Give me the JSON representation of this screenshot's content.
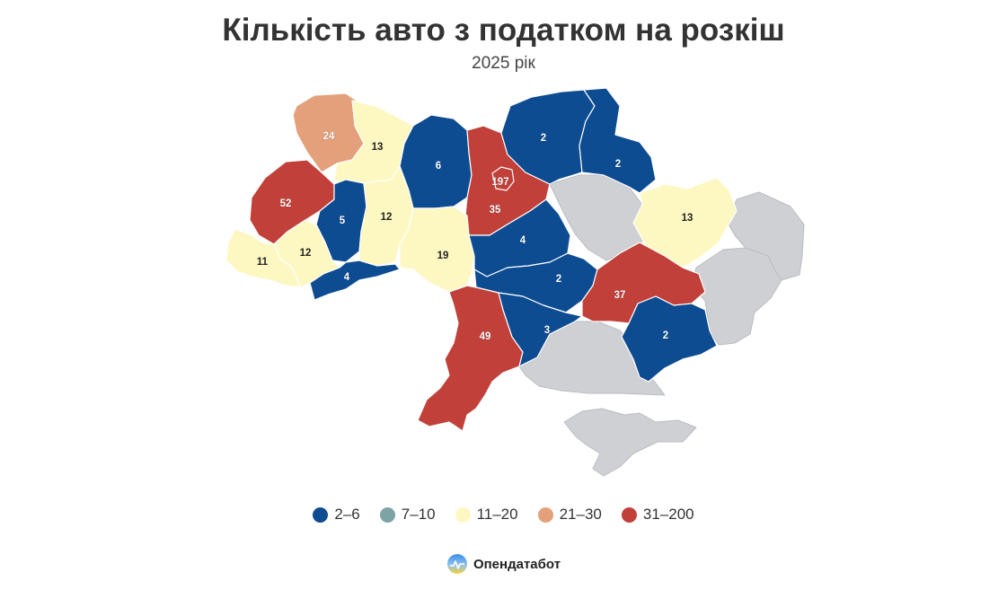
{
  "title": "Кількість авто з податком на розкіш",
  "subtitle": "2025 рік",
  "colors": {
    "bin_2_6": "#0e4c92",
    "bin_7_10": "#7da3a4",
    "bin_11_20": "#fdf7c2",
    "bin_21_30": "#e3a07a",
    "bin_31_200": "#c1403a",
    "no_data": "#cfd0d3"
  },
  "legend": [
    {
      "label": "2–6",
      "color": "#0e4c92"
    },
    {
      "label": "7–10",
      "color": "#7da3a4"
    },
    {
      "label": "11–20",
      "color": "#fdf7c2"
    },
    {
      "label": "21–30",
      "color": "#e3a07a"
    },
    {
      "label": "31–200",
      "color": "#c1403a"
    }
  ],
  "regions": {
    "volyn": {
      "value": "24",
      "bin": "bin_21_30"
    },
    "rivne": {
      "value": "13",
      "bin": "bin_11_20"
    },
    "zhytomyr": {
      "value": "6",
      "bin": "bin_2_6"
    },
    "kyiv_city": {
      "value": "197",
      "bin": "bin_31_200"
    },
    "kyiv_oblast": {
      "value": "35",
      "bin": "bin_31_200"
    },
    "chernihiv": {
      "value": "2",
      "bin": "bin_2_6"
    },
    "sumy": {
      "value": "2",
      "bin": "bin_2_6"
    },
    "kharkiv": {
      "value": "13",
      "bin": "bin_11_20"
    },
    "lviv": {
      "value": "52",
      "bin": "bin_31_200"
    },
    "ternopil": {
      "value": "5",
      "bin": "bin_2_6"
    },
    "khmelnytskyi": {
      "value": "12",
      "bin": "bin_11_20"
    },
    "vinnytsia": {
      "value": "19",
      "bin": "bin_11_20"
    },
    "cherkasy": {
      "value": "4",
      "bin": "bin_2_6"
    },
    "kirovohrad": {
      "value": "2",
      "bin": "bin_2_6"
    },
    "dnipropetrovsk": {
      "value": "37",
      "bin": "bin_31_200"
    },
    "zakarpattia": {
      "value": "11",
      "bin": "bin_11_20"
    },
    "ivano_frankivsk": {
      "value": "12",
      "bin": "bin_11_20"
    },
    "chernivtsi": {
      "value": "4",
      "bin": "bin_2_6"
    },
    "mykolaiv": {
      "value": "3",
      "bin": "bin_2_6"
    },
    "zaporizhzhia": {
      "value": "2",
      "bin": "bin_2_6"
    },
    "odesa": {
      "value": "49",
      "bin": "bin_31_200"
    }
  },
  "brand": {
    "name": "Опендатабот"
  }
}
